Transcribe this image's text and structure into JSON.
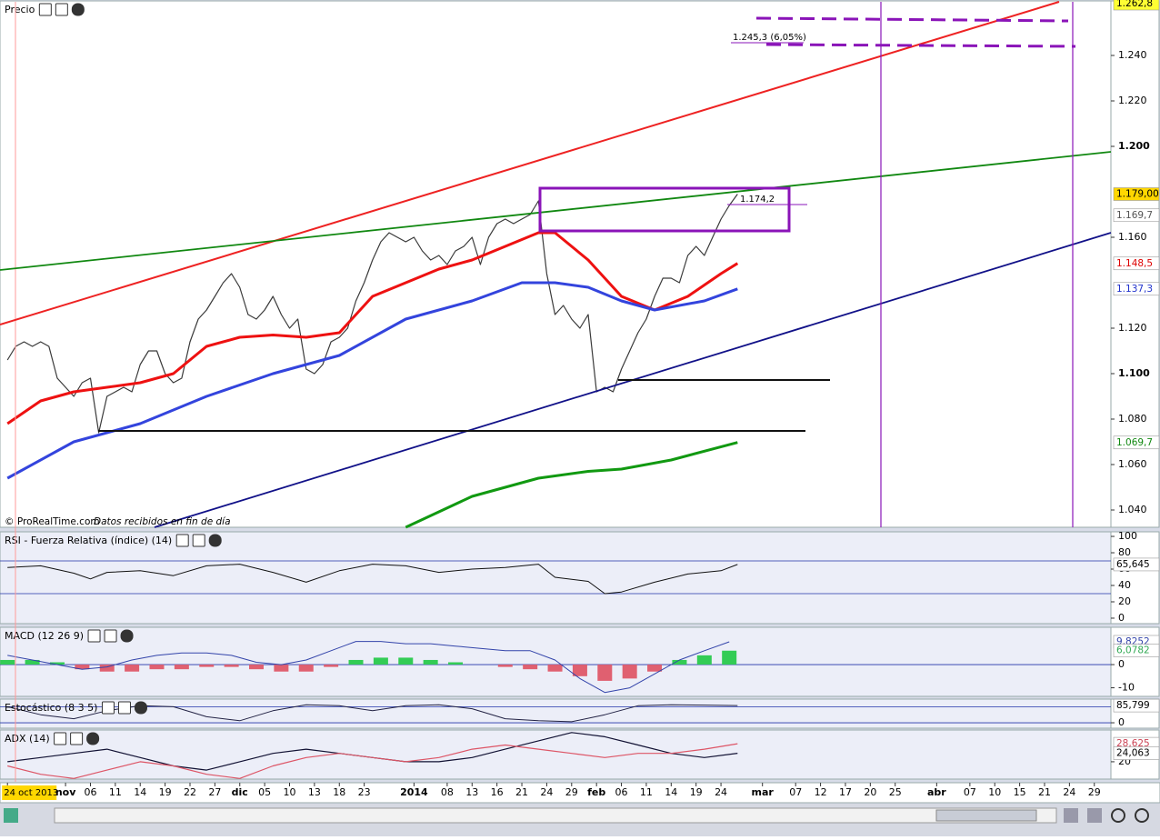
{
  "chart_data": [
    {
      "type": "line",
      "title": "Precio",
      "watermark": "© ProRealTime.com",
      "source_note": "Datos recibidos en fin de día",
      "xlim": [
        -0.9,
        133
      ],
      "xticks": [
        {
          "value": 0,
          "label": "24 oct 2013"
        },
        {
          "value": 7,
          "label": "nov"
        },
        {
          "value": 10,
          "label": "06"
        },
        {
          "value": 13,
          "label": "11"
        },
        {
          "value": 16,
          "label": "14"
        },
        {
          "value": 19,
          "label": "19"
        },
        {
          "value": 22,
          "label": "22"
        },
        {
          "value": 25,
          "label": "27"
        },
        {
          "value": 28,
          "label": "dic"
        },
        {
          "value": 31,
          "label": "05"
        },
        {
          "value": 34,
          "label": "10"
        },
        {
          "value": 37,
          "label": "13"
        },
        {
          "value": 40,
          "label": "18"
        },
        {
          "value": 43,
          "label": "23"
        },
        {
          "value": 49,
          "label": "2014"
        },
        {
          "value": 53,
          "label": "08"
        },
        {
          "value": 56,
          "label": "13"
        },
        {
          "value": 59,
          "label": "16"
        },
        {
          "value": 62,
          "label": "21"
        },
        {
          "value": 65,
          "label": "24"
        },
        {
          "value": 68,
          "label": "29"
        },
        {
          "value": 71,
          "label": "feb"
        },
        {
          "value": 74,
          "label": "06"
        },
        {
          "value": 77,
          "label": "11"
        },
        {
          "value": 80,
          "label": "14"
        },
        {
          "value": 83,
          "label": "19"
        },
        {
          "value": 86,
          "label": "24"
        },
        {
          "value": 91,
          "label": "mar"
        },
        {
          "value": 95,
          "label": "07"
        },
        {
          "value": 98,
          "label": "12"
        },
        {
          "value": 101,
          "label": "17"
        },
        {
          "value": 104,
          "label": "20"
        },
        {
          "value": 107,
          "label": "25"
        },
        {
          "value": 112,
          "label": "abr"
        },
        {
          "value": 116,
          "label": "07"
        },
        {
          "value": 119,
          "label": "10"
        },
        {
          "value": 122,
          "label": "15"
        },
        {
          "value": 125,
          "label": "21"
        },
        {
          "value": 128,
          "label": "24"
        },
        {
          "value": 131,
          "label": "29"
        }
      ],
      "ylim": [
        1.0324,
        1.264
      ],
      "yticks": [
        {
          "value": 1.04,
          "label": "1.040"
        },
        {
          "value": 1.06,
          "label": "1.060"
        },
        {
          "value": 1.08,
          "label": "1.080"
        },
        {
          "value": 1.1,
          "label": "1.100"
        },
        {
          "value": 1.12,
          "label": "1.120"
        },
        {
          "value": 1.16,
          "label": "1.160"
        },
        {
          "value": 1.2,
          "label": "1.200"
        },
        {
          "value": 1.22,
          "label": "1.220"
        },
        {
          "value": 1.24,
          "label": "1.240"
        }
      ],
      "series": [
        {
          "color": "#3a3a3a",
          "width": 1.2,
          "x": [
            0,
            1,
            2,
            3,
            4,
            5,
            6,
            7,
            8,
            9,
            10,
            11,
            12,
            13,
            14,
            15,
            16,
            17,
            18,
            19,
            20,
            21,
            22,
            23,
            24,
            25,
            26,
            27,
            28,
            29,
            30,
            31,
            32,
            33,
            34,
            35,
            36,
            37,
            38,
            39,
            40,
            41,
            42,
            43,
            44,
            45,
            46,
            47,
            48,
            49,
            50,
            51,
            52,
            53,
            54,
            55,
            56,
            57,
            58,
            59,
            60,
            61,
            62,
            63,
            64,
            65,
            66,
            67,
            68,
            69,
            70,
            71,
            72,
            73,
            74,
            75,
            76,
            77,
            78,
            79,
            80,
            81,
            82,
            83,
            84,
            85,
            86,
            87,
            88
          ],
          "values": [
            1.106,
            1.112,
            1.114,
            1.112,
            1.114,
            1.112,
            1.098,
            1.094,
            1.09,
            1.096,
            1.098,
            1.074,
            1.09,
            1.092,
            1.094,
            1.092,
            1.104,
            1.11,
            1.11,
            1.1,
            1.096,
            1.098,
            1.114,
            1.124,
            1.128,
            1.134,
            1.14,
            1.144,
            1.138,
            1.126,
            1.124,
            1.128,
            1.134,
            1.126,
            1.12,
            1.124,
            1.102,
            1.1,
            1.104,
            1.114,
            1.116,
            1.12,
            1.132,
            1.14,
            1.15,
            1.158,
            1.162,
            1.16,
            1.158,
            1.16,
            1.154,
            1.15,
            1.152,
            1.148,
            1.154,
            1.156,
            1.16,
            1.148,
            1.16,
            1.166,
            1.168,
            1.166,
            1.168,
            1.17,
            1.176,
            1.144,
            1.126,
            1.13,
            1.124,
            1.12,
            1.126,
            1.092,
            1.094,
            1.092,
            1.102,
            1.11,
            1.118,
            1.124,
            1.134,
            1.142,
            1.142,
            1.14,
            1.152,
            1.156,
            1.152,
            1.16,
            1.168,
            1.174,
            1.179
          ]
        },
        {
          "color": "#ee1111",
          "width": 3,
          "x": [
            0,
            4,
            8,
            12,
            16,
            20,
            24,
            28,
            32,
            36,
            40,
            44,
            48,
            52,
            56,
            60,
            64,
            66,
            70,
            74,
            78,
            82,
            86,
            88
          ],
          "values": [
            1.078,
            1.088,
            1.092,
            1.094,
            1.096,
            1.1,
            1.112,
            1.116,
            1.117,
            1.116,
            1.118,
            1.134,
            1.14,
            1.146,
            1.15,
            1.156,
            1.162,
            1.162,
            1.15,
            1.134,
            1.128,
            1.134,
            1.144,
            1.1485
          ]
        },
        {
          "color": "#3344dd",
          "width": 3,
          "x": [
            0,
            8,
            16,
            24,
            32,
            40,
            48,
            56,
            62,
            66,
            70,
            74,
            78,
            84,
            88
          ],
          "values": [
            1.054,
            1.07,
            1.078,
            1.09,
            1.1,
            1.108,
            1.124,
            1.132,
            1.14,
            1.14,
            1.138,
            1.132,
            1.128,
            1.132,
            1.1373
          ]
        },
        {
          "color": "#119911",
          "width": 3,
          "x": [
            48,
            56,
            64,
            70,
            74,
            80,
            88
          ],
          "values": [
            1.0324,
            1.046,
            1.054,
            1.057,
            1.058,
            1.062,
            1.0697
          ]
        }
      ],
      "annotations": [
        "1.245,3 (6,05%)",
        "1.174,2"
      ],
      "last_labels": [
        {
          "value": 1.2628,
          "label": "1.262,8",
          "fill": "#ffff33",
          "text_color": "#000000"
        },
        {
          "value": 1.179,
          "label": "1.179,00",
          "fill": "#ffd700",
          "text_color": "#000000"
        },
        {
          "value": 1.1697,
          "label": "1.169,7",
          "fill": "#ffffff",
          "text_color": "#555555"
        },
        {
          "value": 1.1485,
          "label": "1.148,5",
          "fill": "#ffffff",
          "text_color": "#dd0000"
        },
        {
          "value": 1.1373,
          "label": "1.137,3",
          "fill": "#ffffff",
          "text_color": "#2233cc"
        },
        {
          "value": 1.0697,
          "label": "1.069,7",
          "fill": "#ffffff",
          "text_color": "#118811"
        }
      ]
    },
    {
      "type": "line",
      "title": "RSI - Fuerza Relativa (índice) (14)",
      "ylim": [
        -6.7,
        105.6
      ],
      "yticks": [
        100,
        80,
        60,
        40,
        20,
        0
      ],
      "reference_lines": [
        70,
        30
      ],
      "series": [
        {
          "color": "#111111",
          "width": 1,
          "x": [
            0,
            4,
            8,
            10,
            12,
            16,
            20,
            24,
            28,
            32,
            36,
            40,
            44,
            48,
            52,
            56,
            60,
            64,
            66,
            70,
            72,
            74,
            78,
            82,
            86,
            88
          ],
          "values": [
            62,
            64,
            55,
            48,
            56,
            58,
            52,
            64,
            66,
            56,
            44,
            58,
            66,
            64,
            56,
            60,
            62,
            66,
            50,
            45,
            30,
            32,
            44,
            54,
            58,
            65.645
          ]
        }
      ],
      "last_labels": [
        {
          "value": 65.645,
          "label": "65,645",
          "fill": "#ffffff",
          "text_color": "#000000"
        }
      ]
    },
    {
      "type": "line",
      "title": "MACD (12 26 9)",
      "ylim": [
        -13.7,
        16.1
      ],
      "yticks": [
        0,
        -10
      ],
      "reference_lines": [
        0
      ],
      "series": [
        {
          "type": "bar",
          "color": "#33cc55",
          "negative_color": "#e06070",
          "x": [
            0,
            3,
            6,
            9,
            12,
            15,
            18,
            21,
            24,
            27,
            30,
            33,
            36,
            39,
            42,
            45,
            48,
            51,
            54,
            57,
            60,
            63,
            66,
            69,
            72,
            75,
            78,
            81,
            84,
            87
          ],
          "values": [
            2,
            2,
            1,
            -2,
            -3,
            -3,
            -2,
            -2,
            -1,
            -1,
            -2,
            -3,
            -3,
            -1,
            2,
            3,
            3,
            2,
            1,
            0,
            -1,
            -2,
            -3,
            -5,
            -7,
            -6,
            -3,
            2,
            4,
            6
          ]
        },
        {
          "color": "#3344aa",
          "width": 1,
          "x": [
            0,
            3,
            6,
            9,
            12,
            15,
            18,
            21,
            24,
            27,
            30,
            33,
            36,
            39,
            42,
            45,
            48,
            51,
            54,
            57,
            60,
            63,
            66,
            69,
            72,
            75,
            78,
            81,
            84,
            87
          ],
          "values": [
            4,
            2,
            0,
            -2,
            -1,
            2,
            4,
            5,
            5,
            4,
            1,
            0,
            2,
            6,
            10,
            10,
            9,
            9,
            8,
            7,
            6,
            6,
            2,
            -6,
            -12,
            -10,
            -4,
            2,
            6,
            9.8252
          ]
        }
      ],
      "last_labels": [
        {
          "value": 9.8252,
          "label": "9,8252",
          "fill": "#ffffff",
          "text_color": "#3344aa"
        },
        {
          "value": 6.0782,
          "label": "6,0782",
          "fill": "#ffffff",
          "text_color": "#33aa55"
        }
      ]
    },
    {
      "type": "line",
      "title": "Estocástico (8 3 5)",
      "ylim": [
        -27,
        118
      ],
      "yticks": [
        0
      ],
      "reference_lines": [
        80,
        0
      ],
      "series": [
        {
          "color": "#222244",
          "width": 1,
          "x": [
            0,
            4,
            8,
            12,
            16,
            20,
            24,
            28,
            32,
            36,
            40,
            44,
            48,
            52,
            56,
            60,
            64,
            68,
            72,
            76,
            80,
            84,
            88
          ],
          "values": [
            80,
            40,
            20,
            60,
            85,
            80,
            30,
            10,
            60,
            90,
            85,
            60,
            85,
            90,
            70,
            20,
            10,
            5,
            40,
            85,
            90,
            88,
            85.799
          ]
        }
      ],
      "last_labels": [
        {
          "value": 85.799,
          "label": "85,799",
          "fill": "#ffffff",
          "text_color": "#000000"
        }
      ]
    },
    {
      "type": "line",
      "title": "ADX (14)",
      "ylim": [
        11.7,
        35.2
      ],
      "yticks": [
        20
      ],
      "reference_lines": [],
      "series": [
        {
          "color": "#111133",
          "width": 1.2,
          "x": [
            0,
            4,
            8,
            12,
            16,
            20,
            24,
            28,
            32,
            36,
            40,
            44,
            48,
            52,
            56,
            60,
            64,
            68,
            72,
            76,
            80,
            84,
            88
          ],
          "values": [
            20,
            22,
            24,
            26,
            22,
            18,
            16,
            20,
            24,
            26,
            24,
            22,
            20,
            20,
            22,
            26,
            30,
            34,
            32,
            28,
            24,
            22,
            24.063
          ]
        },
        {
          "color": "#dd5566",
          "width": 1.2,
          "x": [
            0,
            4,
            8,
            12,
            16,
            20,
            24,
            28,
            32,
            36,
            40,
            44,
            48,
            52,
            56,
            60,
            64,
            68,
            72,
            76,
            80,
            84,
            88
          ],
          "values": [
            18,
            14,
            12,
            16,
            20,
            18,
            14,
            12,
            18,
            22,
            24,
            22,
            20,
            22,
            26,
            28,
            26,
            24,
            22,
            24,
            24,
            26,
            28.625
          ]
        }
      ],
      "last_labels": [
        {
          "value": 28.625,
          "label": "28,625",
          "fill": "#ffffff",
          "text_color": "#cc4455"
        },
        {
          "value": 24.063,
          "label": "24,063",
          "fill": "#ffffff",
          "text_color": "#000000"
        }
      ]
    }
  ]
}
